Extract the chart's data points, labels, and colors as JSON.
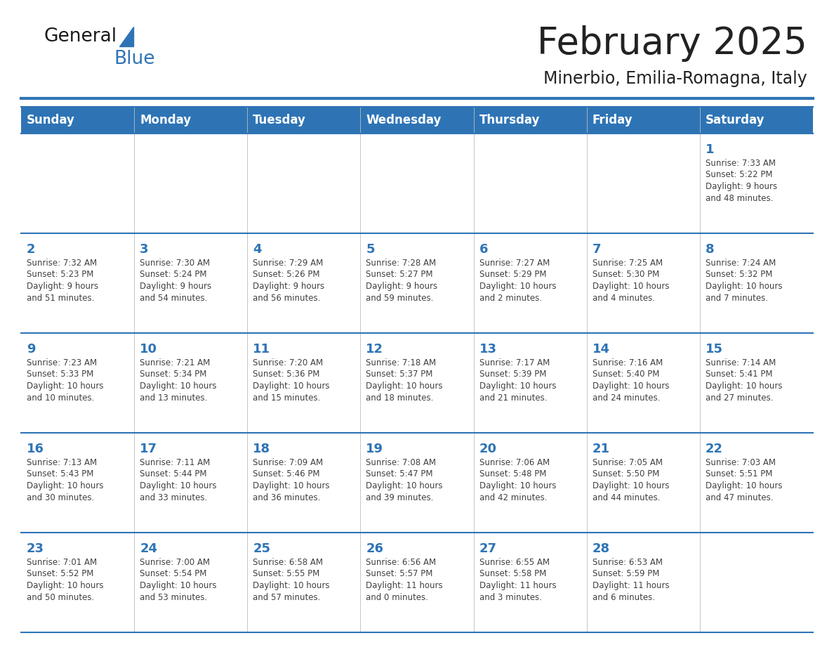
{
  "title": "February 2025",
  "subtitle": "Minerbio, Emilia-Romagna, Italy",
  "days_of_week": [
    "Sunday",
    "Monday",
    "Tuesday",
    "Wednesday",
    "Thursday",
    "Friday",
    "Saturday"
  ],
  "header_bg": "#2E74B5",
  "header_text": "#FFFFFF",
  "cell_bg": "#FFFFFF",
  "border_color": "#2E74B5",
  "day_number_color": "#2E74B5",
  "info_text_color": "#404040",
  "title_color": "#222222",
  "logo_black": "#1a1a1a",
  "logo_blue": "#2E74B5",
  "weeks": [
    [
      {
        "day": null,
        "info": ""
      },
      {
        "day": null,
        "info": ""
      },
      {
        "day": null,
        "info": ""
      },
      {
        "day": null,
        "info": ""
      },
      {
        "day": null,
        "info": ""
      },
      {
        "day": null,
        "info": ""
      },
      {
        "day": 1,
        "info": "Sunrise: 7:33 AM\nSunset: 5:22 PM\nDaylight: 9 hours\nand 48 minutes."
      }
    ],
    [
      {
        "day": 2,
        "info": "Sunrise: 7:32 AM\nSunset: 5:23 PM\nDaylight: 9 hours\nand 51 minutes."
      },
      {
        "day": 3,
        "info": "Sunrise: 7:30 AM\nSunset: 5:24 PM\nDaylight: 9 hours\nand 54 minutes."
      },
      {
        "day": 4,
        "info": "Sunrise: 7:29 AM\nSunset: 5:26 PM\nDaylight: 9 hours\nand 56 minutes."
      },
      {
        "day": 5,
        "info": "Sunrise: 7:28 AM\nSunset: 5:27 PM\nDaylight: 9 hours\nand 59 minutes."
      },
      {
        "day": 6,
        "info": "Sunrise: 7:27 AM\nSunset: 5:29 PM\nDaylight: 10 hours\nand 2 minutes."
      },
      {
        "day": 7,
        "info": "Sunrise: 7:25 AM\nSunset: 5:30 PM\nDaylight: 10 hours\nand 4 minutes."
      },
      {
        "day": 8,
        "info": "Sunrise: 7:24 AM\nSunset: 5:32 PM\nDaylight: 10 hours\nand 7 minutes."
      }
    ],
    [
      {
        "day": 9,
        "info": "Sunrise: 7:23 AM\nSunset: 5:33 PM\nDaylight: 10 hours\nand 10 minutes."
      },
      {
        "day": 10,
        "info": "Sunrise: 7:21 AM\nSunset: 5:34 PM\nDaylight: 10 hours\nand 13 minutes."
      },
      {
        "day": 11,
        "info": "Sunrise: 7:20 AM\nSunset: 5:36 PM\nDaylight: 10 hours\nand 15 minutes."
      },
      {
        "day": 12,
        "info": "Sunrise: 7:18 AM\nSunset: 5:37 PM\nDaylight: 10 hours\nand 18 minutes."
      },
      {
        "day": 13,
        "info": "Sunrise: 7:17 AM\nSunset: 5:39 PM\nDaylight: 10 hours\nand 21 minutes."
      },
      {
        "day": 14,
        "info": "Sunrise: 7:16 AM\nSunset: 5:40 PM\nDaylight: 10 hours\nand 24 minutes."
      },
      {
        "day": 15,
        "info": "Sunrise: 7:14 AM\nSunset: 5:41 PM\nDaylight: 10 hours\nand 27 minutes."
      }
    ],
    [
      {
        "day": 16,
        "info": "Sunrise: 7:13 AM\nSunset: 5:43 PM\nDaylight: 10 hours\nand 30 minutes."
      },
      {
        "day": 17,
        "info": "Sunrise: 7:11 AM\nSunset: 5:44 PM\nDaylight: 10 hours\nand 33 minutes."
      },
      {
        "day": 18,
        "info": "Sunrise: 7:09 AM\nSunset: 5:46 PM\nDaylight: 10 hours\nand 36 minutes."
      },
      {
        "day": 19,
        "info": "Sunrise: 7:08 AM\nSunset: 5:47 PM\nDaylight: 10 hours\nand 39 minutes."
      },
      {
        "day": 20,
        "info": "Sunrise: 7:06 AM\nSunset: 5:48 PM\nDaylight: 10 hours\nand 42 minutes."
      },
      {
        "day": 21,
        "info": "Sunrise: 7:05 AM\nSunset: 5:50 PM\nDaylight: 10 hours\nand 44 minutes."
      },
      {
        "day": 22,
        "info": "Sunrise: 7:03 AM\nSunset: 5:51 PM\nDaylight: 10 hours\nand 47 minutes."
      }
    ],
    [
      {
        "day": 23,
        "info": "Sunrise: 7:01 AM\nSunset: 5:52 PM\nDaylight: 10 hours\nand 50 minutes."
      },
      {
        "day": 24,
        "info": "Sunrise: 7:00 AM\nSunset: 5:54 PM\nDaylight: 10 hours\nand 53 minutes."
      },
      {
        "day": 25,
        "info": "Sunrise: 6:58 AM\nSunset: 5:55 PM\nDaylight: 10 hours\nand 57 minutes."
      },
      {
        "day": 26,
        "info": "Sunrise: 6:56 AM\nSunset: 5:57 PM\nDaylight: 11 hours\nand 0 minutes."
      },
      {
        "day": 27,
        "info": "Sunrise: 6:55 AM\nSunset: 5:58 PM\nDaylight: 11 hours\nand 3 minutes."
      },
      {
        "day": 28,
        "info": "Sunrise: 6:53 AM\nSunset: 5:59 PM\nDaylight: 11 hours\nand 6 minutes."
      },
      {
        "day": null,
        "info": ""
      }
    ]
  ]
}
